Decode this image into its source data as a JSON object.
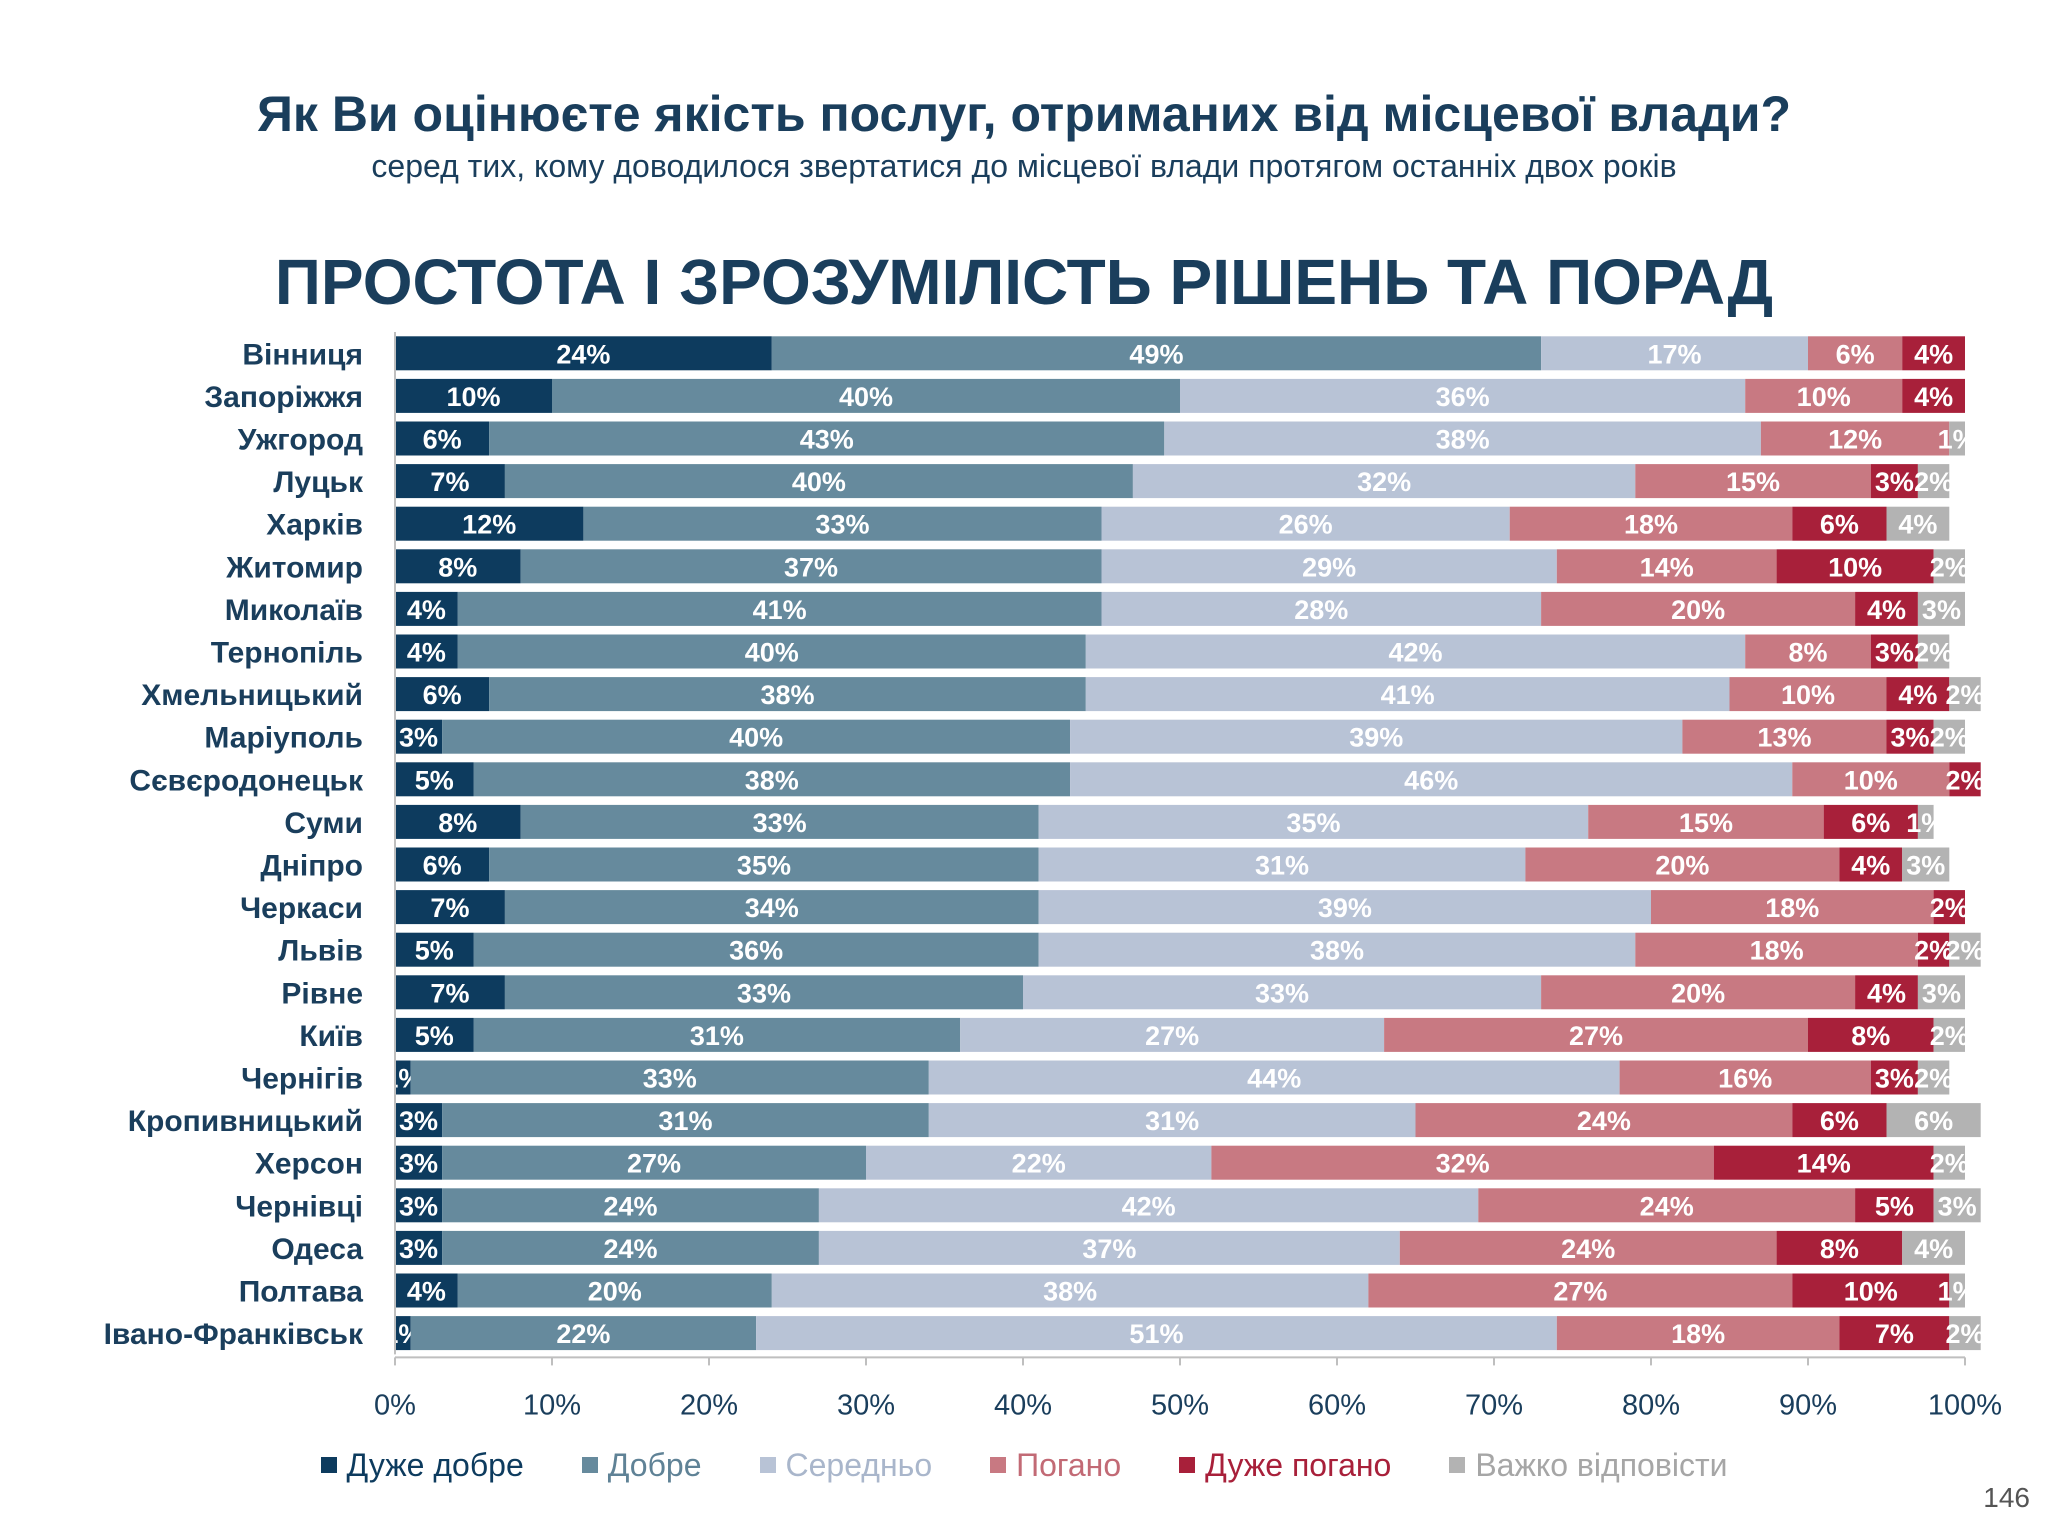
{
  "header": {
    "title": "Як Ви оцінюєте якість послуг, отриманих від місцевої влади?",
    "subtitle": "серед тих, кому доводилося звертатися до місцевої влади протягом останніх двох років"
  },
  "page_number": "146",
  "chart_data": {
    "type": "bar",
    "orientation": "horizontal",
    "stacked": "percent",
    "title": "ПРОСТОТА І ЗРОЗУМІЛІСТЬ РІШЕНЬ ТА ПОРАД",
    "xlim": [
      0,
      100
    ],
    "x_ticks": [
      "0%",
      "10%",
      "20%",
      "30%",
      "40%",
      "50%",
      "60%",
      "70%",
      "80%",
      "90%",
      "100%"
    ],
    "legend_position": "bottom",
    "grid": false,
    "categories": [
      "Вінниця",
      "Запоріжжя",
      "Ужгород",
      "Луцьк",
      "Харків",
      "Житомир",
      "Миколаїв",
      "Тернопіль",
      "Хмельницький",
      "Маріуполь",
      "Сєвєродонецьк",
      "Суми",
      "Дніпро",
      "Черкаси",
      "Львів",
      "Рівне",
      "Київ",
      "Чернігів",
      "Кропивницький",
      "Херсон",
      "Чернівці",
      "Одеса",
      "Полтава",
      "Івано-Франківськ"
    ],
    "series": [
      {
        "name": "Дуже добре",
        "color": "#0d3b5e",
        "legend_text_color": "#0d3b5e",
        "values": [
          24,
          10,
          6,
          7,
          12,
          8,
          4,
          4,
          6,
          3,
          5,
          8,
          6,
          7,
          5,
          7,
          5,
          1,
          3,
          3,
          3,
          3,
          4,
          1
        ]
      },
      {
        "name": "Добре",
        "color": "#668a9d",
        "legend_text_color": "#5f8296",
        "values": [
          49,
          40,
          43,
          40,
          33,
          37,
          41,
          40,
          38,
          40,
          38,
          33,
          35,
          34,
          36,
          33,
          31,
          33,
          31,
          27,
          24,
          24,
          20,
          22
        ]
      },
      {
        "name": "Середньо",
        "color": "#b8c3d6",
        "legend_text_color": "#a9b6cb",
        "values": [
          17,
          36,
          38,
          32,
          26,
          29,
          28,
          42,
          41,
          39,
          46,
          35,
          31,
          39,
          38,
          33,
          27,
          44,
          31,
          22,
          42,
          37,
          38,
          51
        ]
      },
      {
        "name": "Погано",
        "color": "#c87982",
        "legend_text_color": "#c26a75",
        "values": [
          6,
          10,
          12,
          15,
          18,
          14,
          20,
          8,
          10,
          13,
          10,
          15,
          20,
          18,
          18,
          20,
          27,
          16,
          24,
          32,
          24,
          24,
          27,
          18
        ]
      },
      {
        "name": "Дуже погано",
        "color": "#a8203a",
        "legend_text_color": "#a8203a",
        "values": [
          4,
          4,
          0,
          3,
          6,
          10,
          4,
          3,
          4,
          3,
          2,
          6,
          4,
          2,
          2,
          4,
          8,
          3,
          6,
          14,
          5,
          8,
          10,
          7
        ]
      },
      {
        "name": "Важко відповісти",
        "color": "#b3b3b3",
        "legend_text_color": "#a6a6a6",
        "values": [
          0,
          0,
          1,
          2,
          4,
          2,
          3,
          2,
          2,
          2,
          0,
          1,
          3,
          0,
          2,
          3,
          2,
          2,
          6,
          2,
          3,
          4,
          1,
          2
        ]
      }
    ]
  }
}
